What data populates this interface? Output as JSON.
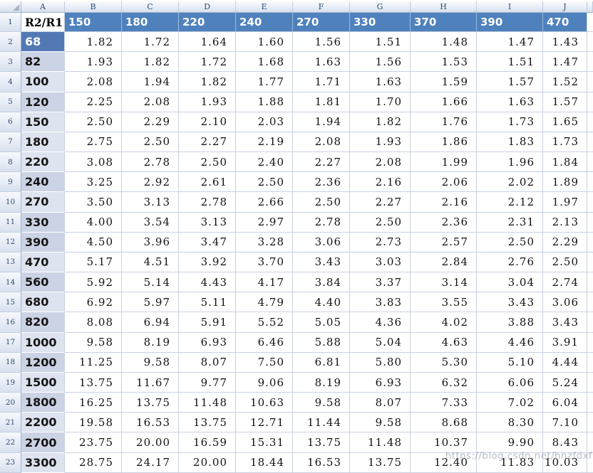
{
  "watermark": {
    "text": "https://blog.csdn.net/hnzfdxf"
  },
  "spreadsheet": {
    "column_letters": [
      "A",
      "B",
      "C",
      "D",
      "E",
      "F",
      "G",
      "H",
      "I",
      "J"
    ],
    "row_numbers": [
      "1",
      "2",
      "3",
      "4",
      "5",
      "6",
      "7",
      "8",
      "9",
      "10",
      "11",
      "12",
      "13",
      "14",
      "15",
      "16",
      "17",
      "18",
      "19",
      "20",
      "21",
      "22",
      "23"
    ],
    "header_row": {
      "label": "R2/R1",
      "values": [
        "150",
        "180",
        "220",
        "240",
        "270",
        "330",
        "370",
        "390",
        "470"
      ]
    },
    "rows": [
      {
        "label": "68",
        "shade": "sel",
        "values": [
          "1.82",
          "1.72",
          "1.64",
          "1.60",
          "1.56",
          "1.51",
          "1.48",
          "1.47",
          "1.43"
        ]
      },
      {
        "label": "82",
        "shade": "dark",
        "values": [
          "1.93",
          "1.82",
          "1.72",
          "1.68",
          "1.63",
          "1.56",
          "1.53",
          "1.51",
          "1.47"
        ]
      },
      {
        "label": "100",
        "shade": "light",
        "values": [
          "2.08",
          "1.94",
          "1.82",
          "1.77",
          "1.71",
          "1.63",
          "1.59",
          "1.57",
          "1.52"
        ]
      },
      {
        "label": "120",
        "shade": "dark",
        "values": [
          "2.25",
          "2.08",
          "1.93",
          "1.88",
          "1.81",
          "1.70",
          "1.66",
          "1.63",
          "1.57"
        ]
      },
      {
        "label": "150",
        "shade": "light",
        "values": [
          "2.50",
          "2.29",
          "2.10",
          "2.03",
          "1.94",
          "1.82",
          "1.76",
          "1.73",
          "1.65"
        ]
      },
      {
        "label": "180",
        "shade": "light",
        "values": [
          "2.75",
          "2.50",
          "2.27",
          "2.19",
          "2.08",
          "1.93",
          "1.86",
          "1.83",
          "1.73"
        ]
      },
      {
        "label": "220",
        "shade": "light",
        "values": [
          "3.08",
          "2.78",
          "2.50",
          "2.40",
          "2.27",
          "2.08",
          "1.99",
          "1.96",
          "1.84"
        ]
      },
      {
        "label": "240",
        "shade": "dark",
        "values": [
          "3.25",
          "2.92",
          "2.61",
          "2.50",
          "2.36",
          "2.16",
          "2.06",
          "2.02",
          "1.89"
        ]
      },
      {
        "label": "270",
        "shade": "light",
        "values": [
          "3.50",
          "3.13",
          "2.78",
          "2.66",
          "2.50",
          "2.27",
          "2.16",
          "2.12",
          "1.97"
        ]
      },
      {
        "label": "330",
        "shade": "dark",
        "values": [
          "4.00",
          "3.54",
          "3.13",
          "2.97",
          "2.78",
          "2.50",
          "2.36",
          "2.31",
          "2.13"
        ]
      },
      {
        "label": "390",
        "shade": "dark",
        "values": [
          "4.50",
          "3.96",
          "3.47",
          "3.28",
          "3.06",
          "2.73",
          "2.57",
          "2.50",
          "2.29"
        ]
      },
      {
        "label": "470",
        "shade": "light",
        "values": [
          "5.17",
          "4.51",
          "3.92",
          "3.70",
          "3.43",
          "3.03",
          "2.84",
          "2.76",
          "2.50"
        ]
      },
      {
        "label": "560",
        "shade": "dark",
        "values": [
          "5.92",
          "5.14",
          "4.43",
          "4.17",
          "3.84",
          "3.37",
          "3.14",
          "3.04",
          "2.74"
        ]
      },
      {
        "label": "680",
        "shade": "light",
        "values": [
          "6.92",
          "5.97",
          "5.11",
          "4.79",
          "4.40",
          "3.83",
          "3.55",
          "3.43",
          "3.06"
        ]
      },
      {
        "label": "820",
        "shade": "dark",
        "values": [
          "8.08",
          "6.94",
          "5.91",
          "5.52",
          "5.05",
          "4.36",
          "4.02",
          "3.88",
          "3.43"
        ]
      },
      {
        "label": "1000",
        "shade": "light",
        "values": [
          "9.58",
          "8.19",
          "6.93",
          "6.46",
          "5.88",
          "5.04",
          "4.63",
          "4.46",
          "3.91"
        ]
      },
      {
        "label": "1200",
        "shade": "dark",
        "values": [
          "11.25",
          "9.58",
          "8.07",
          "7.50",
          "6.81",
          "5.80",
          "5.30",
          "5.10",
          "4.44"
        ]
      },
      {
        "label": "1500",
        "shade": "light",
        "values": [
          "13.75",
          "11.67",
          "9.77",
          "9.06",
          "8.19",
          "6.93",
          "6.32",
          "6.06",
          "5.24"
        ]
      },
      {
        "label": "1800",
        "shade": "dark",
        "values": [
          "16.25",
          "13.75",
          "11.48",
          "10.63",
          "9.58",
          "8.07",
          "7.33",
          "7.02",
          "6.04"
        ]
      },
      {
        "label": "2200",
        "shade": "light",
        "values": [
          "19.58",
          "16.53",
          "13.75",
          "12.71",
          "11.44",
          "9.58",
          "8.68",
          "8.30",
          "7.10"
        ]
      },
      {
        "label": "2700",
        "shade": "dark",
        "values": [
          "23.75",
          "20.00",
          "16.59",
          "15.31",
          "13.75",
          "11.48",
          "10.37",
          "9.90",
          "8.43"
        ]
      },
      {
        "label": "3300",
        "shade": "light",
        "values": [
          "28.75",
          "24.17",
          "20.00",
          "18.44",
          "16.53",
          "13.75",
          "12.40",
          "11.83",
          "10.03"
        ]
      }
    ],
    "colors": {
      "header_blue": "#4f81bd",
      "selected_blue": "#5379b5",
      "col_a_dark": "#ccd3e4",
      "col_a_light": "#dde3ef",
      "gridline": "#c8d2e1"
    }
  }
}
